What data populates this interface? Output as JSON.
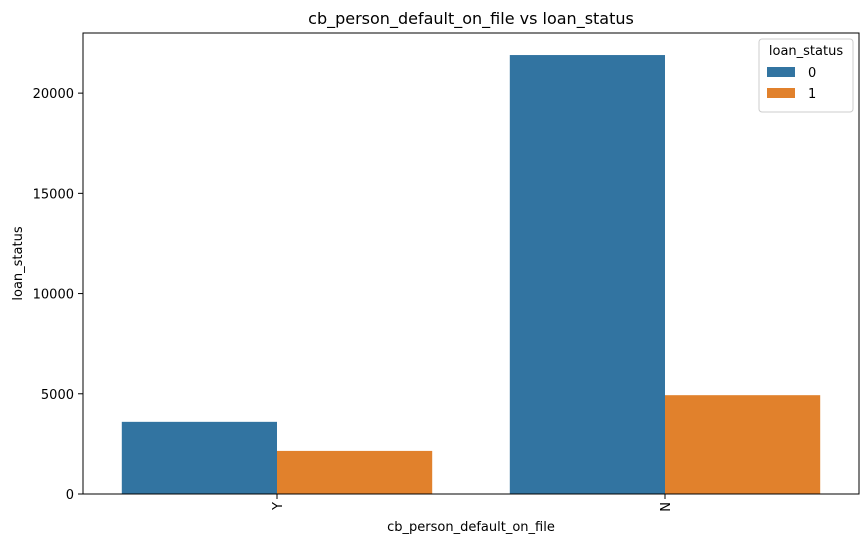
{
  "chart_data": {
    "type": "bar",
    "title": "cb_person_default_on_file vs loan_status",
    "xlabel": "cb_person_default_on_file",
    "ylabel": "loan_status",
    "categories": [
      "Y",
      "N"
    ],
    "series": [
      {
        "name": "0",
        "values": [
          3600,
          21900
        ],
        "color": "#3274a1"
      },
      {
        "name": "1",
        "values": [
          2150,
          4930
        ],
        "color": "#e1812c"
      }
    ],
    "ylim": [
      0,
      23000
    ],
    "yticks": [
      0,
      5000,
      10000,
      15000,
      20000
    ],
    "ytick_labels": [
      "0",
      "5000",
      "10000",
      "15000",
      "20000"
    ],
    "grid": false,
    "legend": {
      "title": "loan_status",
      "placement": "top-right"
    }
  }
}
